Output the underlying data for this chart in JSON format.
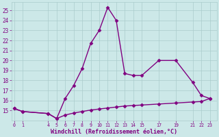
{
  "x_upper": [
    0,
    1,
    4,
    5,
    6,
    7,
    8,
    9,
    10,
    11,
    12,
    13,
    14,
    15,
    17,
    19,
    21,
    22,
    23
  ],
  "y_upper": [
    15.2,
    14.9,
    14.7,
    14.2,
    16.2,
    17.5,
    19.2,
    21.7,
    23.0,
    25.3,
    24.0,
    18.7,
    18.5,
    18.5,
    20.0,
    20.0,
    17.8,
    16.5,
    16.2
  ],
  "x_lower": [
    0,
    1,
    4,
    5,
    6,
    7,
    8,
    9,
    10,
    11,
    12,
    13,
    14,
    15,
    17,
    19,
    21,
    22,
    23
  ],
  "y_lower": [
    15.2,
    14.9,
    14.7,
    14.2,
    14.55,
    14.75,
    14.9,
    15.05,
    15.15,
    15.25,
    15.35,
    15.45,
    15.5,
    15.55,
    15.65,
    15.75,
    15.85,
    15.9,
    16.2
  ],
  "xticks": [
    0,
    1,
    4,
    5,
    6,
    7,
    8,
    9,
    10,
    11,
    12,
    13,
    14,
    15,
    17,
    19,
    21,
    22,
    23
  ],
  "yticks": [
    15,
    16,
    17,
    18,
    19,
    20,
    21,
    22,
    23,
    24,
    25
  ],
  "ylim": [
    14.0,
    25.8
  ],
  "xlim": [
    -0.3,
    23.8
  ],
  "line_color": "#800080",
  "bg_color": "#cce8e8",
  "grid_color": "#aacccc",
  "xlabel": "Windchill (Refroidissement éolien,°C)",
  "xlabel_color": "#800080",
  "tick_color": "#800080",
  "marker": "D",
  "marker_size": 2.5,
  "linewidth": 1.0
}
